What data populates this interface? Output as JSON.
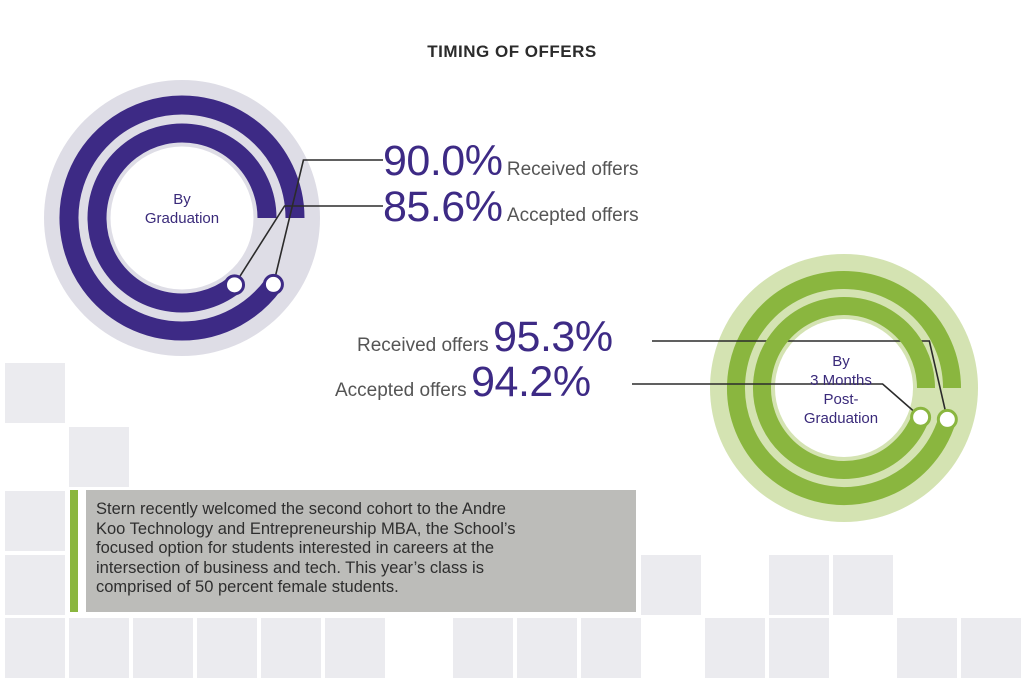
{
  "title": "TIMING OF OFFERS",
  "colors": {
    "purple": "#3d2a85",
    "purple_track": "#dedde6",
    "green": "#8ab63f",
    "green_track": "#d4e3b2",
    "tile": "#ebebef",
    "note_bg": "#bcbcb9",
    "accent_bar": "#8ab63f"
  },
  "chart_data": [
    {
      "type": "radial-bar",
      "center_label": [
        "By",
        "Graduation"
      ],
      "series": [
        {
          "name": "Received offers",
          "value": 90.0,
          "display": "90.0%"
        },
        {
          "name": "Accepted offers",
          "value": 85.6,
          "display": "85.6%"
        }
      ],
      "max": 100
    },
    {
      "type": "radial-bar",
      "center_label": [
        "By",
        "3 Months",
        "Post-",
        "Graduation"
      ],
      "series": [
        {
          "name": "Received offers",
          "value": 95.3,
          "display": "95.3%"
        },
        {
          "name": "Accepted offers",
          "value": 94.2,
          "display": "94.2%"
        }
      ],
      "max": 100
    }
  ],
  "note": {
    "lines": [
      "Stern recently welcomed the second cohort to the Andre",
      "Koo Technology and Entrepreneurship MBA, the School’s",
      "focused option for students interested in careers at the",
      "intersection of business and tech. This year’s class is",
      "comprised of 50 percent female students."
    ]
  }
}
